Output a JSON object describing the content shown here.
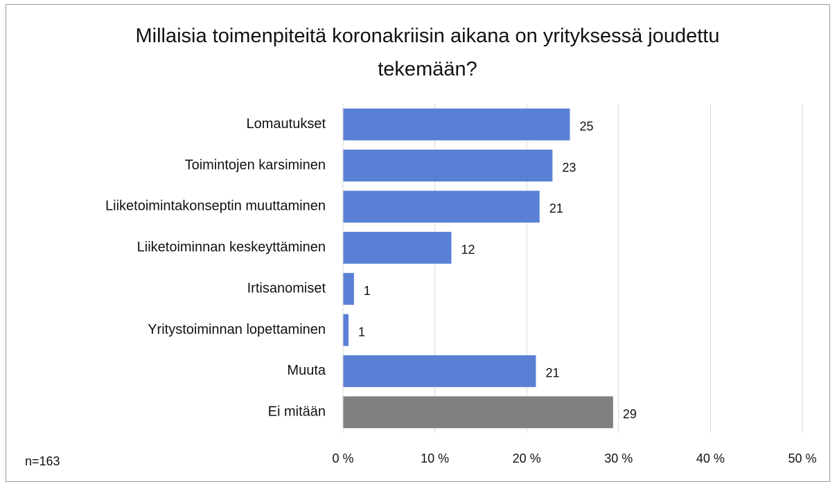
{
  "chart_data": {
    "type": "hbar",
    "title": "Millaisia toimenpiteitä koronakriisin aikana on yrityksessä joudettu tekemään?",
    "categories": [
      "Lomautukset",
      "Toimintojen karsiminen",
      "Liiketoimintakonseptin muuttaminen",
      "Liiketoiminnan keskeyttäminen",
      "Irtisanomiset",
      "Yritystoiminnan lopettaminen",
      "Muuta",
      "Ei mitään"
    ],
    "values": [
      24.7,
      22.8,
      21.4,
      11.8,
      1.2,
      0.6,
      21.0,
      29.4
    ],
    "value_labels": [
      "25",
      "23",
      "21",
      "12",
      "1",
      "1",
      "21",
      "29"
    ],
    "colors": [
      "#5a80d6",
      "#5a80d6",
      "#5a80d6",
      "#5a80d6",
      "#5a80d6",
      "#5a80d6",
      "#5a80d6",
      "#808080"
    ],
    "xlim": [
      0,
      50
    ],
    "xticks": [
      {
        "value": 0,
        "label": "0 %"
      },
      {
        "value": 10,
        "label": "10 %"
      },
      {
        "value": 20,
        "label": "20 %"
      },
      {
        "value": 30,
        "label": "30 %"
      },
      {
        "value": 40,
        "label": "40 %"
      },
      {
        "value": 50,
        "label": "50 %"
      }
    ],
    "grid": true,
    "annotation": "n=163"
  }
}
